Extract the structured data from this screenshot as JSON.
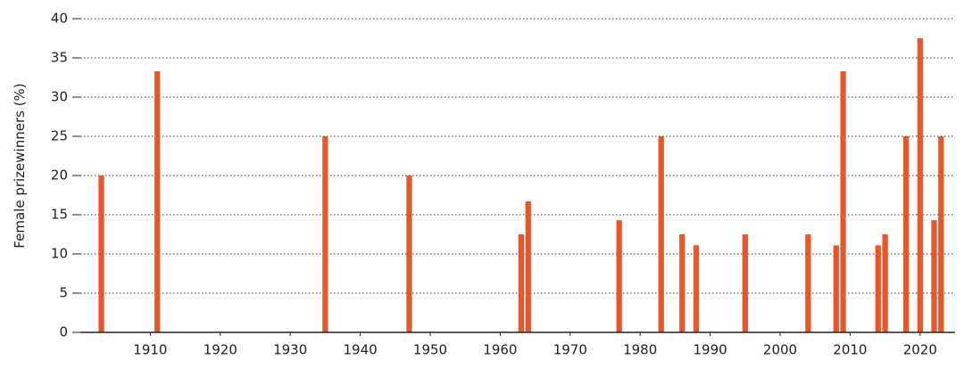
{
  "chart_data": {
    "type": "bar",
    "ylabel": "Female prizewinners (%)",
    "x": [
      1903,
      1911,
      1935,
      1947,
      1963,
      1964,
      1977,
      1983,
      1986,
      1988,
      1995,
      2004,
      2008,
      2009,
      2014,
      2015,
      2018,
      2020,
      2022,
      2023
    ],
    "values": [
      20,
      33.3,
      25,
      20,
      12.5,
      16.7,
      14.3,
      25,
      12.5,
      11.1,
      12.5,
      12.5,
      11.1,
      33.3,
      11.1,
      12.5,
      25,
      37.5,
      14.3,
      25
    ],
    "color": "#e8562a",
    "xlim": [
      1900.5,
      2025.5
    ],
    "xticks": [
      1910,
      1920,
      1930,
      1940,
      1950,
      1960,
      1970,
      1980,
      1990,
      2000,
      2010,
      2020
    ],
    "ylim": [
      0,
      40
    ],
    "yticks": [
      0,
      5,
      10,
      15,
      20,
      25,
      30,
      35,
      40
    ],
    "grid": true
  }
}
